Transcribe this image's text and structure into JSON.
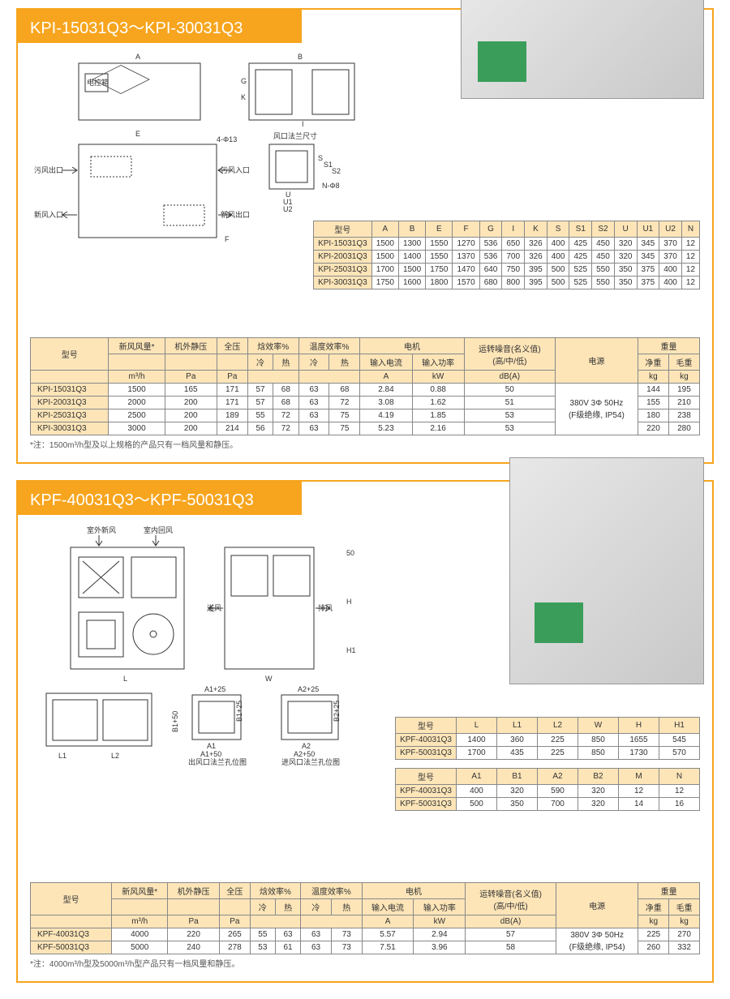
{
  "section1": {
    "title": "KPI-15031Q3～KPI-30031Q3",
    "diagram_labels": {
      "control_box": "电控箱",
      "exhaust_out": "污风出口",
      "fresh_in": "新风入口",
      "exhaust_in": "污风入口",
      "fresh_out": "新风出口",
      "flange_dim": "风口法兰尺寸",
      "holes": "4-Φ13",
      "n_holes": "N-Φ8"
    },
    "dim_table": {
      "headers": [
        "型号",
        "A",
        "B",
        "E",
        "F",
        "G",
        "I",
        "K",
        "S",
        "S1",
        "S2",
        "U",
        "U1",
        "U2",
        "N"
      ],
      "rows": [
        [
          "KPI-15031Q3",
          "1500",
          "1300",
          "1550",
          "1270",
          "536",
          "650",
          "326",
          "400",
          "425",
          "450",
          "320",
          "345",
          "370",
          "12"
        ],
        [
          "KPI-20031Q3",
          "1500",
          "1400",
          "1550",
          "1370",
          "536",
          "700",
          "326",
          "400",
          "425",
          "450",
          "320",
          "345",
          "370",
          "12"
        ],
        [
          "KPI-25031Q3",
          "1700",
          "1500",
          "1750",
          "1470",
          "640",
          "750",
          "395",
          "500",
          "525",
          "550",
          "350",
          "375",
          "400",
          "12"
        ],
        [
          "KPI-30031Q3",
          "1750",
          "1600",
          "1800",
          "1570",
          "680",
          "800",
          "395",
          "500",
          "525",
          "550",
          "350",
          "375",
          "400",
          "12"
        ]
      ]
    },
    "spec_table": {
      "headers_row1": [
        "型号",
        "新风风量*",
        "机外静压",
        "全压",
        "焓效率%",
        "温度效率%",
        "电机",
        "运转噪音(名义值)\n(高/中/低)",
        "电源",
        "重量"
      ],
      "headers_row2": [
        "",
        "",
        "",
        "冷",
        "热",
        "冷",
        "热",
        "输入电流",
        "输入功率",
        "",
        "",
        "净重",
        "毛重"
      ],
      "units": [
        "",
        "m³/h",
        "Pa",
        "Pa",
        "",
        "",
        "",
        "",
        "A",
        "kW",
        "dB(A)",
        "",
        "kg",
        "kg"
      ],
      "rows": [
        [
          "KPI-15031Q3",
          "1500",
          "165",
          "171",
          "57",
          "68",
          "63",
          "68",
          "2.84",
          "0.88",
          "50",
          "",
          "144",
          "195"
        ],
        [
          "KPI-20031Q3",
          "2000",
          "200",
          "171",
          "57",
          "68",
          "63",
          "72",
          "3.08",
          "1.62",
          "51",
          "",
          "155",
          "210"
        ],
        [
          "KPI-25031Q3",
          "2500",
          "200",
          "189",
          "55",
          "72",
          "63",
          "75",
          "4.19",
          "1.85",
          "53",
          "",
          "180",
          "238"
        ],
        [
          "KPI-30031Q3",
          "3000",
          "200",
          "214",
          "56",
          "72",
          "63",
          "75",
          "5.23",
          "2.16",
          "53",
          "",
          "220",
          "280"
        ]
      ],
      "power": "380V 3Φ 50Hz\n(F级绝缘, IP54)"
    },
    "note": "*注：1500m³/h型及以上规格的产品只有一档风量和静压。"
  },
  "section2": {
    "title": "KPF-40031Q3～KPF-50031Q3",
    "diagram_labels": {
      "outdoor_fresh": "室外新风",
      "indoor_return": "室内回风",
      "supply": "送风",
      "exhaust": "排风",
      "out_flange": "出风口法兰孔位图",
      "in_flange": "进风口法兰孔位图"
    },
    "dim_table1": {
      "headers": [
        "型号",
        "L",
        "L1",
        "L2",
        "W",
        "H",
        "H1"
      ],
      "rows": [
        [
          "KPF-40031Q3",
          "1400",
          "360",
          "225",
          "850",
          "1655",
          "545"
        ],
        [
          "KPF-50031Q3",
          "1700",
          "435",
          "225",
          "850",
          "1730",
          "570"
        ]
      ]
    },
    "dim_table2": {
      "headers": [
        "型号",
        "A1",
        "B1",
        "A2",
        "B2",
        "M",
        "N"
      ],
      "rows": [
        [
          "KPF-40031Q3",
          "400",
          "320",
          "590",
          "320",
          "12",
          "12"
        ],
        [
          "KPF-50031Q3",
          "500",
          "350",
          "700",
          "320",
          "14",
          "16"
        ]
      ]
    },
    "spec_table": {
      "rows": [
        [
          "KPF-40031Q3",
          "4000",
          "220",
          "265",
          "55",
          "63",
          "63",
          "73",
          "5.57",
          "2.94",
          "57",
          "",
          "225",
          "270"
        ],
        [
          "KPF-50031Q3",
          "5000",
          "240",
          "278",
          "53",
          "61",
          "63",
          "73",
          "7.51",
          "3.96",
          "58",
          "",
          "260",
          "332"
        ]
      ],
      "power": "380V 3Φ 50Hz\n(F级绝缘, IP54)"
    },
    "note": "*注：4000m³/h型及5000m³/h型产品只有一档风量和静压。"
  },
  "colors": {
    "accent": "#f7a51e",
    "header_bg": "#fde5b8",
    "border": "#888888"
  }
}
